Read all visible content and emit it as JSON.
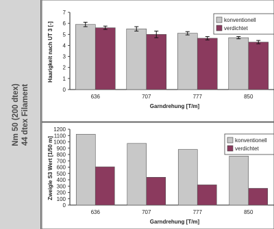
{
  "side_label": {
    "line1": "Nm 50 (200 dtex)",
    "line2": "44 dtex Filament"
  },
  "colors": {
    "konventionell": "#c8c8c8",
    "verdichtet": "#8b3a5e"
  },
  "chart_data": [
    {
      "type": "bar",
      "categories": [
        "636",
        "707",
        "777",
        "850"
      ],
      "series": [
        {
          "name": "konventionell",
          "values": [
            5.9,
            5.5,
            5.1,
            4.7
          ],
          "errors": [
            0.2,
            0.2,
            0.15,
            0.1
          ]
        },
        {
          "name": "verdichtet",
          "values": [
            5.6,
            5.0,
            4.65,
            4.3
          ],
          "errors": [
            0.15,
            0.3,
            0.15,
            0.15
          ]
        }
      ],
      "xlabel": "Garndrehung [T/m]",
      "ylabel": "Haarigkeit nach UT 3 [-]",
      "ylim": [
        0,
        7
      ],
      "yticks": [
        0,
        1,
        2,
        3,
        4,
        5,
        6,
        7
      ],
      "legend": "top-right",
      "error_bars": true
    },
    {
      "type": "bar",
      "categories": [
        "636",
        "707",
        "777",
        "850"
      ],
      "series": [
        {
          "name": "konventionell",
          "values": [
            1120,
            975,
            880,
            775
          ]
        },
        {
          "name": "verdichtet",
          "values": [
            605,
            440,
            320,
            265
          ]
        }
      ],
      "xlabel": "Garndrehung [T/m]",
      "ylabel": "Zweigle S3 Wert [1/50 m]",
      "ylim": [
        0,
        1200
      ],
      "yticks": [
        0,
        100,
        200,
        300,
        400,
        500,
        600,
        700,
        800,
        900,
        1000,
        1100,
        1200
      ],
      "legend": "top-right",
      "error_bars": false
    }
  ]
}
